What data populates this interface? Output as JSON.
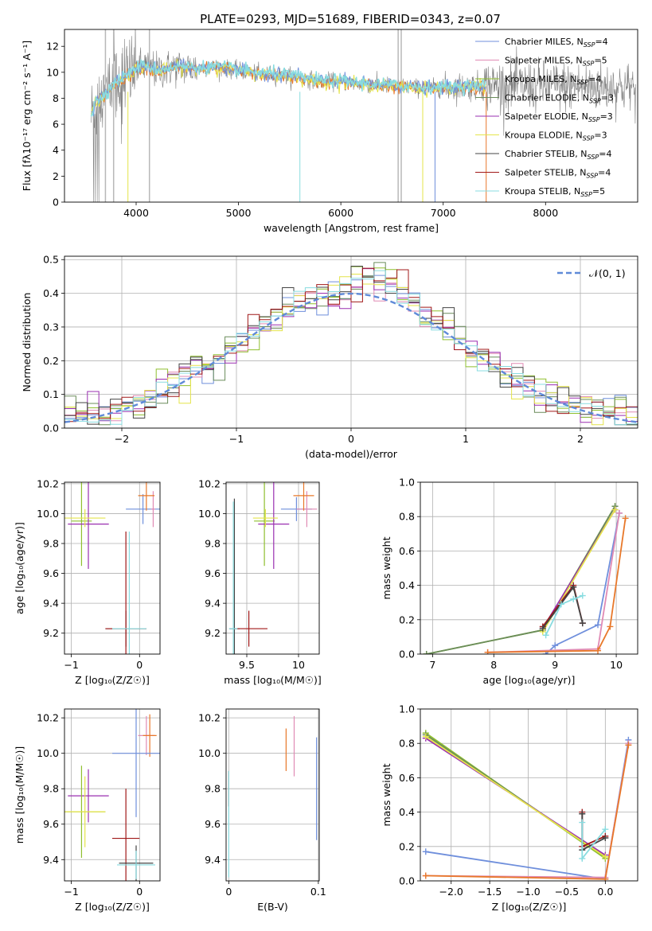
{
  "title": "PLATE=0293, MJD=51689, FIBERID=0343, z=0.07",
  "colors": {
    "Chabrier MILES": "#6f8fdc",
    "Salpeter MILES": "#e08ab4",
    "Kroupa MILES": "#8fbf2f",
    "Chabrier ELODIE": "#6a8c5a",
    "Salpeter ELODIE": "#9a2fb0",
    "Kroupa ELODIE": "#e4e44a",
    "Chabrier STELIB": "#444444",
    "Salpeter STELIB": "#a01818",
    "Kroupa STELIB": "#88dce0",
    "data": "#808080",
    "orange": "#e8782a",
    "gauss": "#5f8ad8"
  },
  "chart_data": [
    {
      "id": "spectrum",
      "type": "line",
      "xlabel": "wavelength [Angstrom, rest frame]",
      "ylabel": "Flux [fλ10⁻¹⁷ erg cm⁻² s⁻¹ A⁻¹]",
      "xlim": [
        3300,
        8900
      ],
      "ylim": [
        0,
        13.3
      ],
      "xticks": [
        4000,
        5000,
        6000,
        7000,
        8000
      ],
      "yticks": [
        0,
        2,
        4,
        6,
        8,
        10,
        12
      ],
      "legend_position": "top-right",
      "legend": [
        {
          "label": "Chabrier MILES, N",
          "sub": "SSP",
          "tail": "=4",
          "color_key": "Chabrier MILES"
        },
        {
          "label": "Salpeter MILES, N",
          "sub": "SSP",
          "tail": "=5",
          "color_key": "Salpeter MILES"
        },
        {
          "label": "Kroupa MILES, N",
          "sub": "SSP",
          "tail": "=4",
          "color_key": "Kroupa MILES"
        },
        {
          "label": "Chabrier ELODIE, N",
          "sub": "SSP",
          "tail": "=3",
          "color_key": "Chabrier ELODIE"
        },
        {
          "label": "Salpeter ELODIE, N",
          "sub": "SSP",
          "tail": "=3",
          "color_key": "Salpeter ELODIE"
        },
        {
          "label": "Kroupa ELODIE, N",
          "sub": "SSP",
          "tail": "=3",
          "color_key": "Kroupa ELODIE"
        },
        {
          "label": "Chabrier STELIB, N",
          "sub": "SSP",
          "tail": "=4",
          "color_key": "Chabrier STELIB"
        },
        {
          "label": "Salpeter STELIB, N",
          "sub": "SSP",
          "tail": "=4",
          "color_key": "Salpeter STELIB"
        },
        {
          "label": "Kroupa STELIB, N",
          "sub": "SSP",
          "tail": "=5",
          "color_key": "Kroupa STELIB"
        }
      ],
      "continuum": [
        [
          3560,
          6.6
        ],
        [
          3600,
          7.6
        ],
        [
          3700,
          8.4
        ],
        [
          3800,
          9.2
        ],
        [
          3900,
          9.7
        ],
        [
          4000,
          10.3
        ],
        [
          4100,
          10.5
        ],
        [
          4200,
          10.1
        ],
        [
          4400,
          10.4
        ],
        [
          4600,
          10.3
        ],
        [
          4800,
          10.4
        ],
        [
          5000,
          10.1
        ],
        [
          5200,
          9.9
        ],
        [
          5400,
          9.8
        ],
        [
          5600,
          9.6
        ],
        [
          5800,
          9.3
        ],
        [
          6000,
          9.3
        ],
        [
          6200,
          9.1
        ],
        [
          6400,
          9.0
        ],
        [
          6600,
          8.9
        ],
        [
          6800,
          8.8
        ],
        [
          7000,
          8.8
        ],
        [
          7200,
          8.9
        ],
        [
          7400,
          8.9
        ]
      ]
    },
    {
      "id": "residuals",
      "type": "step",
      "xlabel": "(data-model)/error",
      "ylabel": "Normed distribution",
      "xlim": [
        -2.5,
        2.5
      ],
      "ylim": [
        0,
        0.51
      ],
      "xticks": [
        -2,
        -1,
        0,
        1,
        2
      ],
      "yticks": [
        0.0,
        0.1,
        0.2,
        0.3,
        0.4,
        0.5
      ],
      "gauss_label": "𝒩(0, 1)",
      "bin_width": 0.1
    },
    {
      "id": "age-Z",
      "type": "errorbar",
      "xlabel": "Z [log₁₀(Z/Z☉)]",
      "ylabel": "age  [log₁₀(age/yr)]",
      "xlim": [
        -1.1,
        0.3
      ],
      "ylim": [
        9.06,
        10.21
      ],
      "xticks": [
        -1,
        0
      ],
      "yticks": [
        9.2,
        9.4,
        9.6,
        9.8,
        10.0,
        10.2
      ],
      "points": [
        {
          "x": 0.05,
          "xerr": 0.25,
          "y": 10.03,
          "yerr": 0.1,
          "c": "#6f8fdc"
        },
        {
          "x": 0.2,
          "xerr": 0.03,
          "y": 10.03,
          "yerr": 0.12,
          "c": "#e08ab4"
        },
        {
          "x": 0.1,
          "xerr": 0.12,
          "y": 10.12,
          "yerr": 0.1,
          "c": "#e8782a"
        },
        {
          "x": -0.85,
          "xerr": 0.15,
          "y": 9.95,
          "yerr": 0.3,
          "c": "#8fbf2f"
        },
        {
          "x": -0.75,
          "xerr": 0.3,
          "y": 9.93,
          "yerr": 0.3,
          "c": "#9a2fb0"
        },
        {
          "x": -0.8,
          "xerr": 0.3,
          "y": 9.97,
          "yerr": 0.06,
          "c": "#e4e44a"
        },
        {
          "x": -0.2,
          "xerr": 0.3,
          "y": 9.23,
          "yerr": 0.12,
          "c": "#444444"
        },
        {
          "x": -0.2,
          "xerr": 0.3,
          "y": 9.23,
          "yerr": 0.65,
          "c": "#a01818"
        },
        {
          "x": -0.15,
          "xerr": 0.25,
          "y": 9.23,
          "yerr": 0.65,
          "c": "#88dce0"
        }
      ]
    },
    {
      "id": "age-mass",
      "type": "errorbar",
      "xlabel": "mass [log₁₀(M/M☉)]",
      "ylabel": "",
      "xlim": [
        9.3,
        10.2
      ],
      "ylim": [
        9.06,
        10.21
      ],
      "xticks": [
        9.5,
        10.0
      ],
      "yticks": [
        9.2,
        9.4,
        9.6,
        9.8,
        10.0,
        10.2
      ],
      "points": [
        {
          "x": 9.98,
          "xerr": 0.15,
          "y": 10.03,
          "yerr": 0.08,
          "c": "#6f8fdc"
        },
        {
          "x": 10.08,
          "xerr": 0.1,
          "y": 10.03,
          "yerr": 0.12,
          "c": "#e08ab4"
        },
        {
          "x": 10.05,
          "xerr": 0.1,
          "y": 10.12,
          "yerr": 0.1,
          "c": "#e8782a"
        },
        {
          "x": 9.67,
          "xerr": 0.1,
          "y": 9.95,
          "yerr": 0.3,
          "c": "#8fbf2f"
        },
        {
          "x": 9.76,
          "xerr": 0.15,
          "y": 9.93,
          "yerr": 0.3,
          "c": "#9a2fb0"
        },
        {
          "x": 9.68,
          "xerr": 0.12,
          "y": 9.97,
          "yerr": 0.06,
          "c": "#e4e44a"
        },
        {
          "x": 9.38,
          "xerr": 0.05,
          "y": 9.23,
          "yerr": 0.87,
          "c": "#444444"
        },
        {
          "x": 9.52,
          "xerr": 0.18,
          "y": 9.23,
          "yerr": 0.12,
          "c": "#a01818"
        },
        {
          "x": 9.37,
          "xerr": 0.04,
          "y": 9.23,
          "yerr": 0.85,
          "c": "#88dce0"
        }
      ]
    },
    {
      "id": "weight-age",
      "type": "line",
      "xlabel": "age  [log₁₀(age/yr)]",
      "ylabel": "mass weight",
      "xlim": [
        6.8,
        10.35
      ],
      "ylim": [
        0,
        1
      ],
      "xticks": [
        7,
        8,
        9,
        10
      ],
      "yticks": [
        0.0,
        0.2,
        0.4,
        0.6,
        0.8,
        1.0
      ],
      "series": [
        {
          "c": "#6f8fdc",
          "pts": [
            [
              8.85,
              0.0
            ],
            [
              9.0,
              0.05
            ],
            [
              9.7,
              0.17
            ],
            [
              10.05,
              0.82
            ]
          ]
        },
        {
          "c": "#e08ab4",
          "pts": [
            [
              7.9,
              0.01
            ],
            [
              9.7,
              0.03
            ],
            [
              10.05,
              0.82
            ]
          ]
        },
        {
          "c": "#e8782a",
          "pts": [
            [
              7.9,
              0.01
            ],
            [
              9.7,
              0.02
            ],
            [
              9.9,
              0.16
            ],
            [
              10.15,
              0.79
            ]
          ]
        },
        {
          "c": "#8fbf2f",
          "pts": [
            [
              6.9,
              0.0
            ],
            [
              8.8,
              0.14
            ],
            [
              9.98,
              0.86
            ]
          ]
        },
        {
          "c": "#6a8c5a",
          "pts": [
            [
              6.9,
              0.0
            ],
            [
              8.8,
              0.14
            ],
            [
              9.98,
              0.86
            ]
          ]
        },
        {
          "c": "#9a2fb0",
          "pts": [
            [
              8.8,
              0.15
            ],
            [
              9.98,
              0.84
            ]
          ]
        },
        {
          "c": "#e4e44a",
          "pts": [
            [
              8.8,
              0.13
            ],
            [
              9.98,
              0.84
            ]
          ]
        },
        {
          "c": "#a01818",
          "pts": [
            [
              8.8,
              0.16
            ],
            [
              9.3,
              0.4
            ],
            [
              9.45,
              0.18
            ]
          ]
        },
        {
          "c": "#444444",
          "pts": [
            [
              8.8,
              0.15
            ],
            [
              9.3,
              0.39
            ],
            [
              9.45,
              0.18
            ]
          ]
        },
        {
          "c": "#88dce0",
          "pts": [
            [
              8.85,
              0.11
            ],
            [
              9.1,
              0.29
            ],
            [
              9.3,
              0.32
            ],
            [
              9.45,
              0.34
            ]
          ]
        }
      ]
    },
    {
      "id": "mass-Z",
      "type": "errorbar",
      "xlabel": "Z [log₁₀(Z/Z☉)]",
      "ylabel": "mass [log₁₀(M/M☉)]",
      "xlim": [
        -1.1,
        0.3
      ],
      "ylim": [
        9.28,
        10.25
      ],
      "xticks": [
        -1,
        0
      ],
      "yticks": [
        9.4,
        9.6,
        9.8,
        10.0,
        10.2
      ],
      "points": [
        {
          "x": 0.1,
          "xerr": 0.12,
          "y": 10.1,
          "yerr": 0.11,
          "c": "#e08ab4"
        },
        {
          "x": 0.15,
          "xerr": 0.1,
          "y": 10.1,
          "yerr": 0.12,
          "c": "#e8782a"
        },
        {
          "x": -0.05,
          "xerr": 0.35,
          "y": 10.0,
          "yerr": 0.36,
          "c": "#6f8fdc"
        },
        {
          "x": -0.75,
          "xerr": 0.3,
          "y": 9.76,
          "yerr": 0.15,
          "c": "#9a2fb0"
        },
        {
          "x": -0.85,
          "xerr": 0.35,
          "y": 9.67,
          "yerr": 0.26,
          "c": "#8fbf2f"
        },
        {
          "x": -0.8,
          "xerr": 0.3,
          "y": 9.67,
          "yerr": 0.2,
          "c": "#e4e44a"
        },
        {
          "x": -0.2,
          "xerr": 0.2,
          "y": 9.52,
          "yerr": 0.28,
          "c": "#a01818"
        },
        {
          "x": -0.05,
          "xerr": 0.25,
          "y": 9.38,
          "yerr": 0.1,
          "c": "#444444"
        },
        {
          "x": -0.05,
          "xerr": 0.28,
          "y": 9.37,
          "yerr": 0.08,
          "c": "#88dce0"
        }
      ]
    },
    {
      "id": "mass-EBV",
      "type": "errorbar",
      "xlabel": "E(B-V)",
      "ylabel": "",
      "xlim": [
        -0.003,
        0.101
      ],
      "ylim": [
        9.28,
        10.25
      ],
      "xticks": [
        0.0,
        0.1
      ],
      "yticks": [
        9.4,
        9.6,
        9.8,
        10.0,
        10.2
      ],
      "points": [
        {
          "x": 0.064,
          "xerr": 0,
          "y": 10.02,
          "yerr": 0.12,
          "c": "#e8782a"
        },
        {
          "x": 0.073,
          "xerr": 0,
          "y": 10.04,
          "yerr": 0.17,
          "c": "#e08ab4"
        },
        {
          "x": 0.098,
          "xerr": 0,
          "y": 9.8,
          "yerr": 0.29,
          "c": "#6f8fdc"
        },
        {
          "x": 0.0,
          "xerr": 0,
          "y": 9.8,
          "yerr": 0.1,
          "c": "#a01818"
        },
        {
          "x": 0.0,
          "xerr": 0,
          "y": 9.6,
          "yerr": 0.3,
          "c": "#88dce0"
        }
      ]
    },
    {
      "id": "weight-Z",
      "type": "line",
      "xlabel": "Z [log₁₀(Z/Z☉)]",
      "ylabel": "mass weight",
      "xlim": [
        -2.4,
        0.42
      ],
      "ylim": [
        0,
        1
      ],
      "xticks": [
        -2.0,
        -1.5,
        -1.0,
        -0.5,
        0.0
      ],
      "yticks": [
        0.0,
        0.2,
        0.4,
        0.6,
        0.8,
        1.0
      ],
      "series": [
        {
          "c": "#6f8fdc",
          "pts": [
            [
              -2.33,
              0.17
            ],
            [
              0.0,
              0.01
            ],
            [
              0.3,
              0.82
            ]
          ]
        },
        {
          "c": "#e08ab4",
          "pts": [
            [
              -2.33,
              0.03
            ],
            [
              0.0,
              0.02
            ],
            [
              0.3,
              0.8
            ]
          ]
        },
        {
          "c": "#e8782a",
          "pts": [
            [
              -2.33,
              0.03
            ],
            [
              0.0,
              0.01
            ],
            [
              0.3,
              0.79
            ]
          ]
        },
        {
          "c": "#8fbf2f",
          "pts": [
            [
              -2.33,
              0.86
            ],
            [
              0.0,
              0.13
            ]
          ]
        },
        {
          "c": "#6a8c5a",
          "pts": [
            [
              -2.33,
              0.85
            ],
            [
              0.0,
              0.14
            ]
          ]
        },
        {
          "c": "#9a2fb0",
          "pts": [
            [
              -2.33,
              0.83
            ],
            [
              0.0,
              0.15
            ]
          ]
        },
        {
          "c": "#e4e44a",
          "pts": [
            [
              -2.33,
              0.84
            ],
            [
              0.0,
              0.14
            ]
          ]
        },
        {
          "c": "#a01818",
          "pts": [
            [
              -0.3,
              0.4
            ],
            [
              -0.3,
              0.2
            ],
            [
              0.0,
              0.26
            ]
          ]
        },
        {
          "c": "#444444",
          "pts": [
            [
              -0.3,
              0.39
            ],
            [
              -0.3,
              0.18
            ],
            [
              0.0,
              0.25
            ]
          ]
        },
        {
          "c": "#88dce0",
          "pts": [
            [
              -0.3,
              0.34
            ],
            [
              -0.3,
              0.13
            ],
            [
              0.0,
              0.3
            ]
          ]
        }
      ]
    }
  ]
}
